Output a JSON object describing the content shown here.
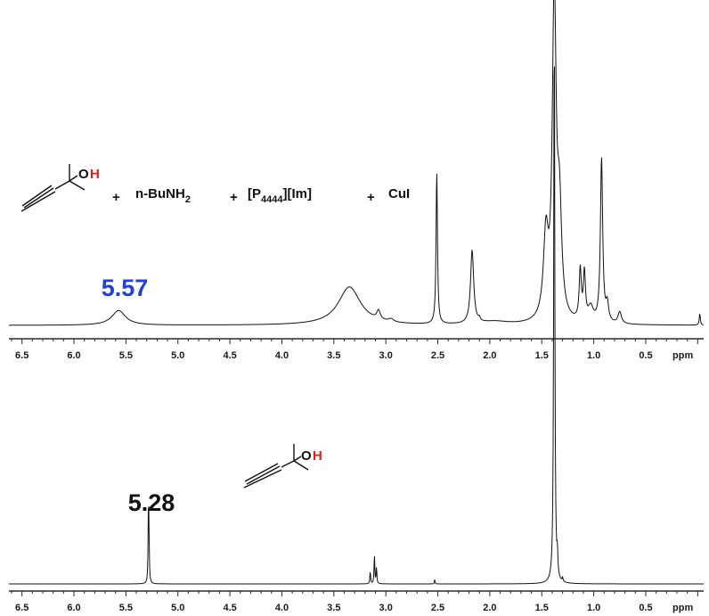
{
  "chart_data": [
    {
      "type": "line",
      "xlabel": "ppm",
      "x_reversed": true,
      "xlim": [
        6.6,
        -0.1
      ],
      "x_ticks": [
        "6.5",
        "6.0",
        "5.5",
        "5.0",
        "4.5",
        "4.0",
        "3.5",
        "3.0",
        "2.5",
        "2.0",
        "1.5",
        "1.0",
        "0.5"
      ],
      "scheme": {
        "oh_o": "O",
        "oh_h": "H",
        "parts": [
          {
            "text": "+"
          },
          {
            "text": "n-BuNH",
            "sub": "2"
          },
          {
            "text": "+"
          },
          {
            "text": "[P",
            "sub": "4444",
            "after": "][Im]"
          },
          {
            "text": "+"
          },
          {
            "text": "CuI"
          }
        ]
      },
      "annotation": {
        "text": "5.57",
        "x": 5.57,
        "color": "#1f3fe0"
      },
      "peaks": [
        {
          "ppm": 5.57,
          "height": 0.05,
          "width": 0.08
        },
        {
          "ppm": 3.35,
          "height": 0.13,
          "width": 0.13
        },
        {
          "ppm": 3.07,
          "height": 0.03,
          "width": 0.02
        },
        {
          "ppm": 2.95,
          "height": 0.01,
          "width": 0.03
        },
        {
          "ppm": 2.51,
          "height": 0.52,
          "width": 0.008
        },
        {
          "ppm": 2.17,
          "height": 0.25,
          "width": 0.018
        },
        {
          "ppm": 2.1,
          "height": 0.01,
          "width": 0.01
        },
        {
          "ppm": 1.95,
          "height": 0.01,
          "width": 0.15
        },
        {
          "ppm": 1.46,
          "height": 0.28,
          "width": 0.028
        },
        {
          "ppm": 1.38,
          "height": 1.1,
          "width": 0.022
        },
        {
          "ppm": 1.33,
          "height": 0.35,
          "width": 0.025
        },
        {
          "ppm": 1.13,
          "height": 0.17,
          "width": 0.012
        },
        {
          "ppm": 1.09,
          "height": 0.16,
          "width": 0.012
        },
        {
          "ppm": 1.03,
          "height": 0.05,
          "width": 0.03
        },
        {
          "ppm": 0.925,
          "height": 0.56,
          "width": 0.013
        },
        {
          "ppm": 0.87,
          "height": 0.06,
          "width": 0.015
        },
        {
          "ppm": 0.75,
          "height": 0.04,
          "width": 0.02
        },
        {
          "ppm": -0.02,
          "height": 0.04,
          "width": 0.006
        }
      ]
    },
    {
      "type": "line",
      "xlabel": "ppm",
      "x_reversed": true,
      "xlim": [
        6.6,
        -0.1
      ],
      "x_ticks": [
        "6.5",
        "6.0",
        "5.5",
        "5.0",
        "4.5",
        "4.0",
        "3.5",
        "3.0",
        "2.5",
        "2.0",
        "1.5",
        "1.0",
        "0.5"
      ],
      "scheme": {
        "oh_o": "O",
        "oh_h": "H"
      },
      "annotation": {
        "text": "5.28",
        "x": 5.28,
        "color": "#111111"
      },
      "peaks": [
        {
          "ppm": 5.283,
          "height": 0.19,
          "width": 0.004
        },
        {
          "ppm": 5.278,
          "height": 0.06,
          "width": 0.004
        },
        {
          "ppm": 3.15,
          "height": 0.03,
          "width": 0.004
        },
        {
          "ppm": 3.11,
          "height": 0.07,
          "width": 0.004
        },
        {
          "ppm": 3.09,
          "height": 0.04,
          "width": 0.004
        },
        {
          "ppm": 2.53,
          "height": 0.01,
          "width": 0.004
        },
        {
          "ppm": 1.38,
          "height": 1.35,
          "width": 0.006
        },
        {
          "ppm": 1.35,
          "height": 0.05,
          "width": 0.005
        },
        {
          "ppm": 1.3,
          "height": 0.01,
          "width": 0.004
        }
      ]
    }
  ]
}
